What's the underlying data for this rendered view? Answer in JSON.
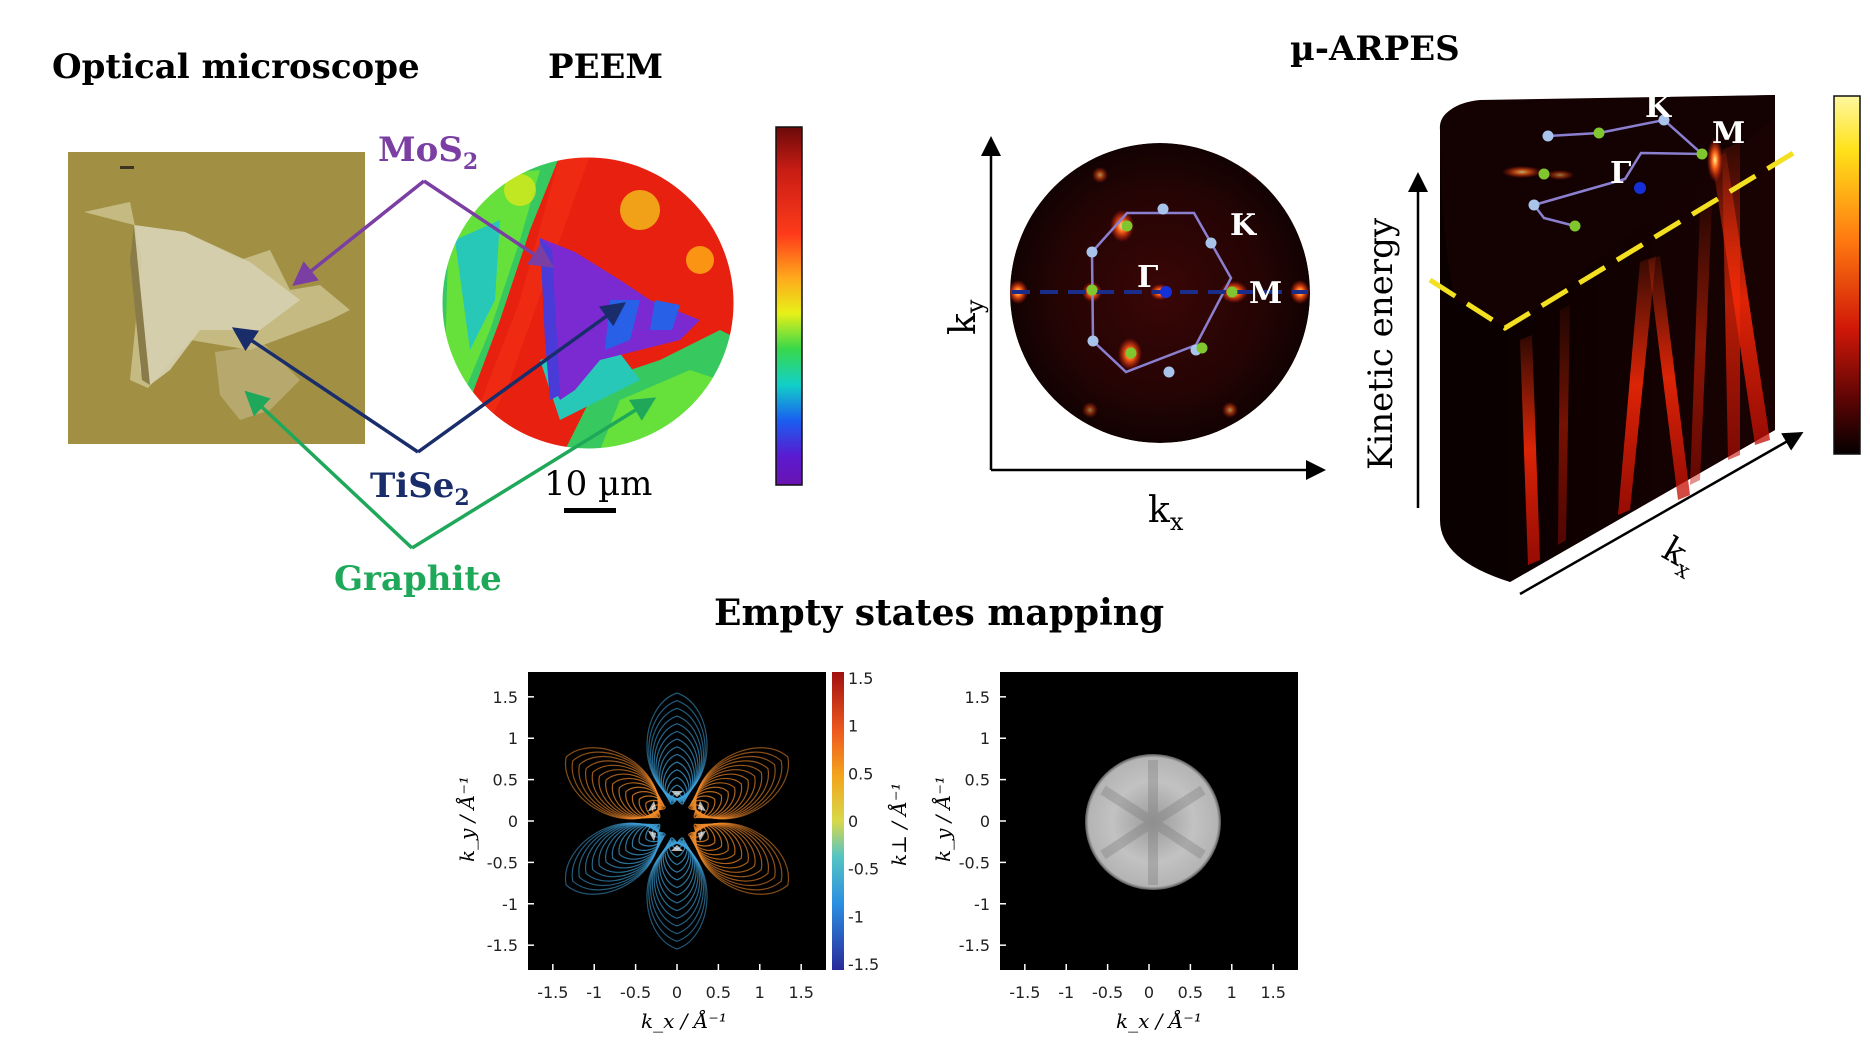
{
  "titles": {
    "optical": "Optical microscope",
    "peem": "PEEM",
    "arpes": "µ-ARPES",
    "empty": "Empty states mapping"
  },
  "labels": {
    "mos2_main": "MoS",
    "mos2_sub": "2",
    "tise2_main": "TiSe",
    "tise2_sub": "2",
    "graphite": "Graphite",
    "scalebar": "10 µm"
  },
  "colors": {
    "mos2": "#7b3fa3",
    "tise2": "#1a2d6b",
    "graphite": "#1fa85a",
    "path": "#8b7fd0",
    "path_k": "#a9c4ea",
    "path_m": "#7fc62f",
    "gamma": "#1530d8",
    "dash_yellow": "#f2e021"
  },
  "bz_map": {
    "axis_x": "k",
    "axis_x_sub": "x",
    "axis_y": "k",
    "axis_y_sub": "y",
    "gamma": "Γ",
    "k": "K",
    "m": "M"
  },
  "cube": {
    "ylabel": "Kinetic energy",
    "xlabel_main": "k",
    "xlabel_sub": "x",
    "gamma": "Γ",
    "k": "K",
    "m": "M"
  },
  "chart_data": [
    {
      "type": "heatmap",
      "xlabel": "k_x / Å⁻¹",
      "ylabel": "k_y / Å⁻¹",
      "xticks": [
        "-1.5",
        "-1",
        "-0.5",
        "0",
        "0.5",
        "1",
        "1.5"
      ],
      "yticks": [
        "1.5",
        "1",
        "0.5",
        "0",
        "-0.5",
        "-1",
        "-1.5"
      ],
      "xlim": [
        -1.8,
        1.8
      ],
      "ylim": [
        -1.8,
        1.8
      ],
      "colorbar": {
        "label": "k⊥ / Å⁻¹",
        "ticks": [
          "1.5",
          "1",
          "0.5",
          "0",
          "-0.5",
          "-1",
          "-1.5"
        ],
        "range": [
          -1.5,
          1.5
        ]
      }
    },
    {
      "type": "heatmap",
      "xlabel": "k_x / Å⁻¹",
      "ylabel": "k_y / Å⁻¹",
      "xticks": [
        "-1.5",
        "-1",
        "-0.5",
        "0",
        "0.5",
        "1",
        "1.5"
      ],
      "yticks": [
        "1.5",
        "1",
        "0.5",
        "0",
        "-0.5",
        "-1",
        "-1.5"
      ],
      "xlim": [
        -1.8,
        1.8
      ],
      "ylim": [
        -1.8,
        1.8
      ]
    }
  ]
}
